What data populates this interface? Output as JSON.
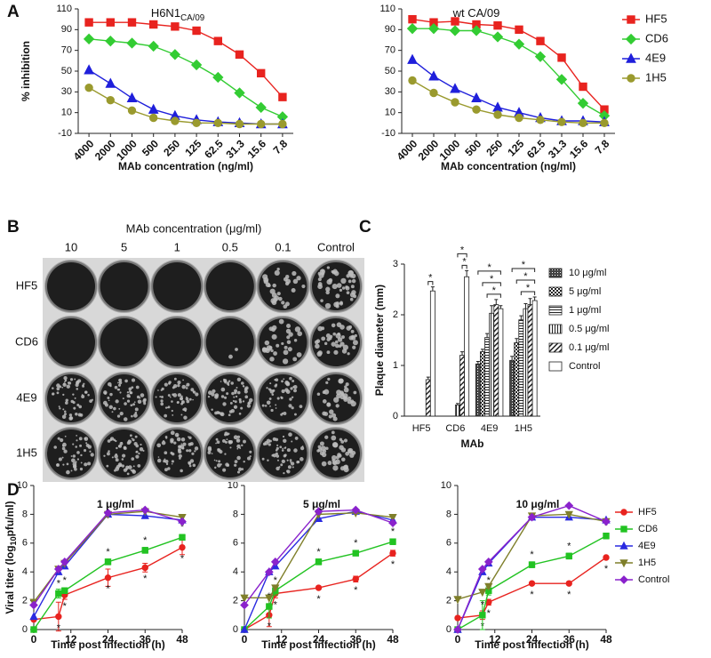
{
  "panel_labels": [
    "A",
    "B",
    "C",
    "D"
  ],
  "plaque_panel": {
    "title": "MAb concentration (μg/ml)",
    "columns": [
      "10",
      "5",
      "1",
      "0.5",
      "0.1",
      "Control"
    ],
    "rows": [
      "HF5",
      "CD6",
      "4E9",
      "1H5"
    ]
  },
  "chart_data": [
    {
      "type": "line",
      "title": "H6N1",
      "title_sub": "CA/09",
      "ylabel": "% inhibition",
      "xlabel": "MAb concentration (ng/ml)",
      "categories": [
        "4000",
        "2000",
        "1000",
        "500",
        "250",
        "125",
        "62.5",
        "31.3",
        "15.6",
        "7.8"
      ],
      "ylim": [
        -10,
        110
      ],
      "yticks": [
        -10,
        10,
        30,
        50,
        70,
        90,
        110
      ],
      "legend": false,
      "series": [
        {
          "name": "HF5",
          "color": "#e8231f",
          "marker": "square",
          "values": [
            97,
            97,
            97,
            95,
            93,
            89,
            79,
            66,
            48,
            25
          ]
        },
        {
          "name": "CD6",
          "color": "#33cc33",
          "marker": "diamond",
          "values": [
            81,
            79,
            77,
            74,
            66,
            56,
            44,
            29,
            15,
            6
          ]
        },
        {
          "name": "4E9",
          "color": "#1f1fdb",
          "marker": "triangle",
          "values": [
            51,
            38,
            24,
            13,
            7,
            3,
            1,
            0,
            -1,
            -1
          ]
        },
        {
          "name": "1H5",
          "color": "#9a9a2e",
          "marker": "circle",
          "values": [
            34,
            22,
            12,
            5,
            2,
            0,
            0,
            -1,
            -1,
            -1
          ]
        }
      ]
    },
    {
      "type": "line",
      "title": "wt CA/09",
      "xlabel": "MAb concentration (ng/ml)",
      "categories": [
        "4000",
        "2000",
        "1000",
        "500",
        "250",
        "125",
        "62.5",
        "31.3",
        "15.6",
        "7.8"
      ],
      "ylim": [
        -10,
        110
      ],
      "yticks": [
        -10,
        10,
        30,
        50,
        70,
        90,
        110
      ],
      "legend": true,
      "series": [
        {
          "name": "HF5",
          "color": "#e8231f",
          "marker": "square",
          "values": [
            100,
            97,
            98,
            95,
            94,
            90,
            79,
            63,
            35,
            13
          ]
        },
        {
          "name": "CD6",
          "color": "#33cc33",
          "marker": "diamond",
          "values": [
            91,
            91,
            89,
            89,
            83,
            76,
            64,
            42,
            19,
            7
          ]
        },
        {
          "name": "4E9",
          "color": "#1f1fdb",
          "marker": "triangle",
          "values": [
            61,
            45,
            33,
            24,
            15,
            10,
            5,
            2,
            2,
            1
          ]
        },
        {
          "name": "1H5",
          "color": "#9a9a2e",
          "marker": "circle",
          "values": [
            41,
            29,
            20,
            13,
            8,
            5,
            3,
            1,
            0,
            0
          ]
        }
      ]
    },
    {
      "type": "bar",
      "ylabel": "Plaque diameter (mm)",
      "xlabel": "MAb",
      "categories": [
        "HF5",
        "CD6",
        "4E9",
        "1H5"
      ],
      "ylim": [
        0,
        3
      ],
      "yticks": [
        0,
        1,
        2,
        3
      ],
      "legend": true,
      "series": [
        {
          "name": "10 μg/ml",
          "pattern": "dots",
          "values": [
            null,
            null,
            1.03,
            1.1
          ],
          "errors": [
            null,
            null,
            0.05,
            0.08
          ]
        },
        {
          "name": "5 μg/ml",
          "pattern": "checker",
          "values": [
            null,
            null,
            1.27,
            1.45
          ],
          "errors": [
            null,
            null,
            0.05,
            0.08
          ]
        },
        {
          "name": "1 μg/ml",
          "pattern": "horizontal",
          "values": [
            null,
            null,
            1.55,
            1.9
          ],
          "errors": [
            null,
            null,
            0.08,
            0.08
          ]
        },
        {
          "name": "0.5 μg/ml",
          "pattern": "vertical",
          "values": [
            null,
            0.22,
            2.03,
            2.12
          ],
          "errors": [
            null,
            0.03,
            0.15,
            0.1
          ]
        },
        {
          "name": "0.1 μg/ml",
          "pattern": "diagonal",
          "values": [
            0.72,
            1.2,
            2.2,
            2.2
          ],
          "errors": [
            0.05,
            0.07,
            0.1,
            0.12
          ]
        },
        {
          "name": "Control",
          "pattern": "none",
          "values": [
            2.47,
            2.75,
            2.12,
            2.28
          ],
          "errors": [
            0.08,
            0.12,
            0.06,
            0.07
          ]
        }
      ],
      "brackets": [
        {
          "category": "HF5",
          "between": [
            "0.1 μg/ml",
            "Control"
          ],
          "label": "*"
        },
        {
          "category": "CD6",
          "between": [
            "0.1 μg/ml",
            "Control"
          ],
          "label": "*"
        },
        {
          "category": "CD6",
          "between": [
            "0.5 μg/ml",
            "Control"
          ],
          "label": "*"
        },
        {
          "category": "4E9",
          "between": [
            "1 μg/ml",
            "Control"
          ],
          "label": "*"
        },
        {
          "category": "4E9",
          "between": [
            "5 μg/ml",
            "Control"
          ],
          "label": "*"
        },
        {
          "category": "4E9",
          "between": [
            "10 μg/ml",
            "Control"
          ],
          "label": "*"
        },
        {
          "category": "1H5",
          "between": [
            "1 μg/ml",
            "Control"
          ],
          "label": "*"
        },
        {
          "category": "1H5",
          "between": [
            "5 μg/ml",
            "Control"
          ],
          "label": "*"
        },
        {
          "category": "1H5",
          "between": [
            "10 μg/ml",
            "Control"
          ],
          "label": "*"
        }
      ]
    },
    {
      "type": "line",
      "title": "1 μg/ml",
      "ylabel": "Viral titer (log",
      "ylabel_sub": "10",
      "ylabel_end": "pfu/ml)",
      "xlabel": "Time post infection (h)",
      "x": [
        0,
        8,
        10,
        24,
        36,
        48
      ],
      "xlim": [
        0,
        48
      ],
      "xticks": [
        0,
        12,
        24,
        36,
        48
      ],
      "ylim": [
        0,
        10
      ],
      "yticks": [
        0,
        2,
        4,
        6,
        8,
        10
      ],
      "legend": false,
      "series": [
        {
          "name": "HF5",
          "color": "#e8231f",
          "marker": "circle",
          "values": [
            0.7,
            0.9,
            2.4,
            3.6,
            4.3,
            5.7
          ],
          "errors": [
            0.1,
            1.0,
            0.3,
            0.6,
            0.3,
            0.5
          ],
          "annotations": [
            null,
            "*",
            "*",
            "*",
            "*",
            "*"
          ],
          "annotation_position": "below"
        },
        {
          "name": "CD6",
          "color": "#22c322",
          "marker": "square",
          "values": [
            0,
            2.5,
            2.7,
            4.7,
            5.5,
            6.4
          ],
          "errors": [
            0,
            0.3,
            0.2,
            0.2,
            0.2,
            0.2
          ],
          "annotations": [
            null,
            "*",
            "*",
            "*",
            "*",
            "*"
          ],
          "annotation_position": "above"
        },
        {
          "name": "4E9",
          "color": "#2a2ae0",
          "marker": "triangle",
          "values": [
            0.9,
            4.0,
            4.4,
            8.0,
            7.9,
            7.6
          ]
        },
        {
          "name": "1H5",
          "color": "#7f7f2a",
          "marker": "triangle-down",
          "values": [
            1.9,
            4.2,
            4.6,
            8.0,
            8.2,
            7.8
          ]
        },
        {
          "name": "Control",
          "color": "#8a22cc",
          "marker": "diamond",
          "values": [
            1.7,
            4.2,
            4.7,
            8.1,
            8.3,
            7.5
          ]
        }
      ]
    },
    {
      "type": "line",
      "title": "5 μg/ml",
      "xlabel": "Time post infection (h)",
      "x": [
        0,
        8,
        10,
        24,
        36,
        48
      ],
      "xlim": [
        0,
        48
      ],
      "xticks": [
        0,
        12,
        24,
        36,
        48
      ],
      "ylim": [
        0,
        10
      ],
      "yticks": [
        0,
        2,
        4,
        6,
        8,
        10
      ],
      "legend": false,
      "series": [
        {
          "name": "HF5",
          "color": "#e8231f",
          "marker": "circle",
          "values": [
            0,
            1.0,
            2.5,
            2.9,
            3.5,
            5.3
          ],
          "errors": [
            0,
            0.8,
            0.3,
            0.1,
            0.2,
            0.2
          ],
          "annotations": [
            null,
            "*",
            "*",
            "*",
            "*",
            "*"
          ],
          "annotation_position": "below"
        },
        {
          "name": "CD6",
          "color": "#22c322",
          "marker": "square",
          "values": [
            0,
            1.6,
            2.7,
            4.7,
            5.3,
            6.1
          ],
          "errors": [
            0,
            0.8,
            0.3,
            0.2,
            0.1,
            0.2
          ],
          "annotations": [
            null,
            "*",
            "*",
            "*",
            "*",
            "*"
          ],
          "annotation_position": "above"
        },
        {
          "name": "4E9",
          "color": "#2a2ae0",
          "marker": "triangle",
          "values": [
            0,
            4.0,
            4.4,
            7.7,
            8.2,
            7.6
          ]
        },
        {
          "name": "1H5",
          "color": "#7f7f2a",
          "marker": "triangle-down",
          "values": [
            2.2,
            2.2,
            2.9,
            8.0,
            8.1,
            7.8
          ]
        },
        {
          "name": "Control",
          "color": "#8a22cc",
          "marker": "diamond",
          "values": [
            1.7,
            4.0,
            4.7,
            8.2,
            8.3,
            7.4
          ]
        }
      ]
    },
    {
      "type": "line",
      "title": "10 μg/ml",
      "xlabel": "Time post infection (h)",
      "x": [
        0,
        8,
        10,
        24,
        36,
        48
      ],
      "xlim": [
        0,
        48
      ],
      "xticks": [
        0,
        12,
        24,
        36,
        48
      ],
      "ylim": [
        0,
        10
      ],
      "yticks": [
        0,
        2,
        4,
        6,
        8,
        10
      ],
      "legend": true,
      "series": [
        {
          "name": "HF5",
          "color": "#e8231f",
          "marker": "circle",
          "values": [
            0.8,
            1.0,
            1.9,
            3.2,
            3.2,
            5.0
          ],
          "errors": [
            0,
            0.3,
            0.2,
            0.1,
            0.1,
            0.1
          ],
          "annotations": [
            null,
            "*",
            "*",
            "*",
            "*",
            "*"
          ],
          "annotation_position": "below"
        },
        {
          "name": "CD6",
          "color": "#22c322",
          "marker": "square",
          "values": [
            0,
            1.0,
            2.7,
            4.5,
            5.1,
            6.5
          ],
          "errors": [
            0,
            1.0,
            0.3,
            0.2,
            0.2,
            0.2
          ],
          "annotations": [
            null,
            "*",
            "*",
            "*",
            "*",
            "*"
          ],
          "annotation_position": "above"
        },
        {
          "name": "4E9",
          "color": "#2a2ae0",
          "marker": "triangle",
          "values": [
            0,
            4.0,
            4.6,
            7.8,
            7.8,
            7.6
          ]
        },
        {
          "name": "1H5",
          "color": "#7f7f2a",
          "marker": "triangle-down",
          "values": [
            2.1,
            2.6,
            3.0,
            7.9,
            8.0,
            7.5
          ]
        },
        {
          "name": "Control",
          "color": "#8a22cc",
          "marker": "diamond",
          "values": [
            0,
            4.2,
            4.7,
            7.8,
            8.6,
            7.5
          ]
        }
      ]
    }
  ]
}
